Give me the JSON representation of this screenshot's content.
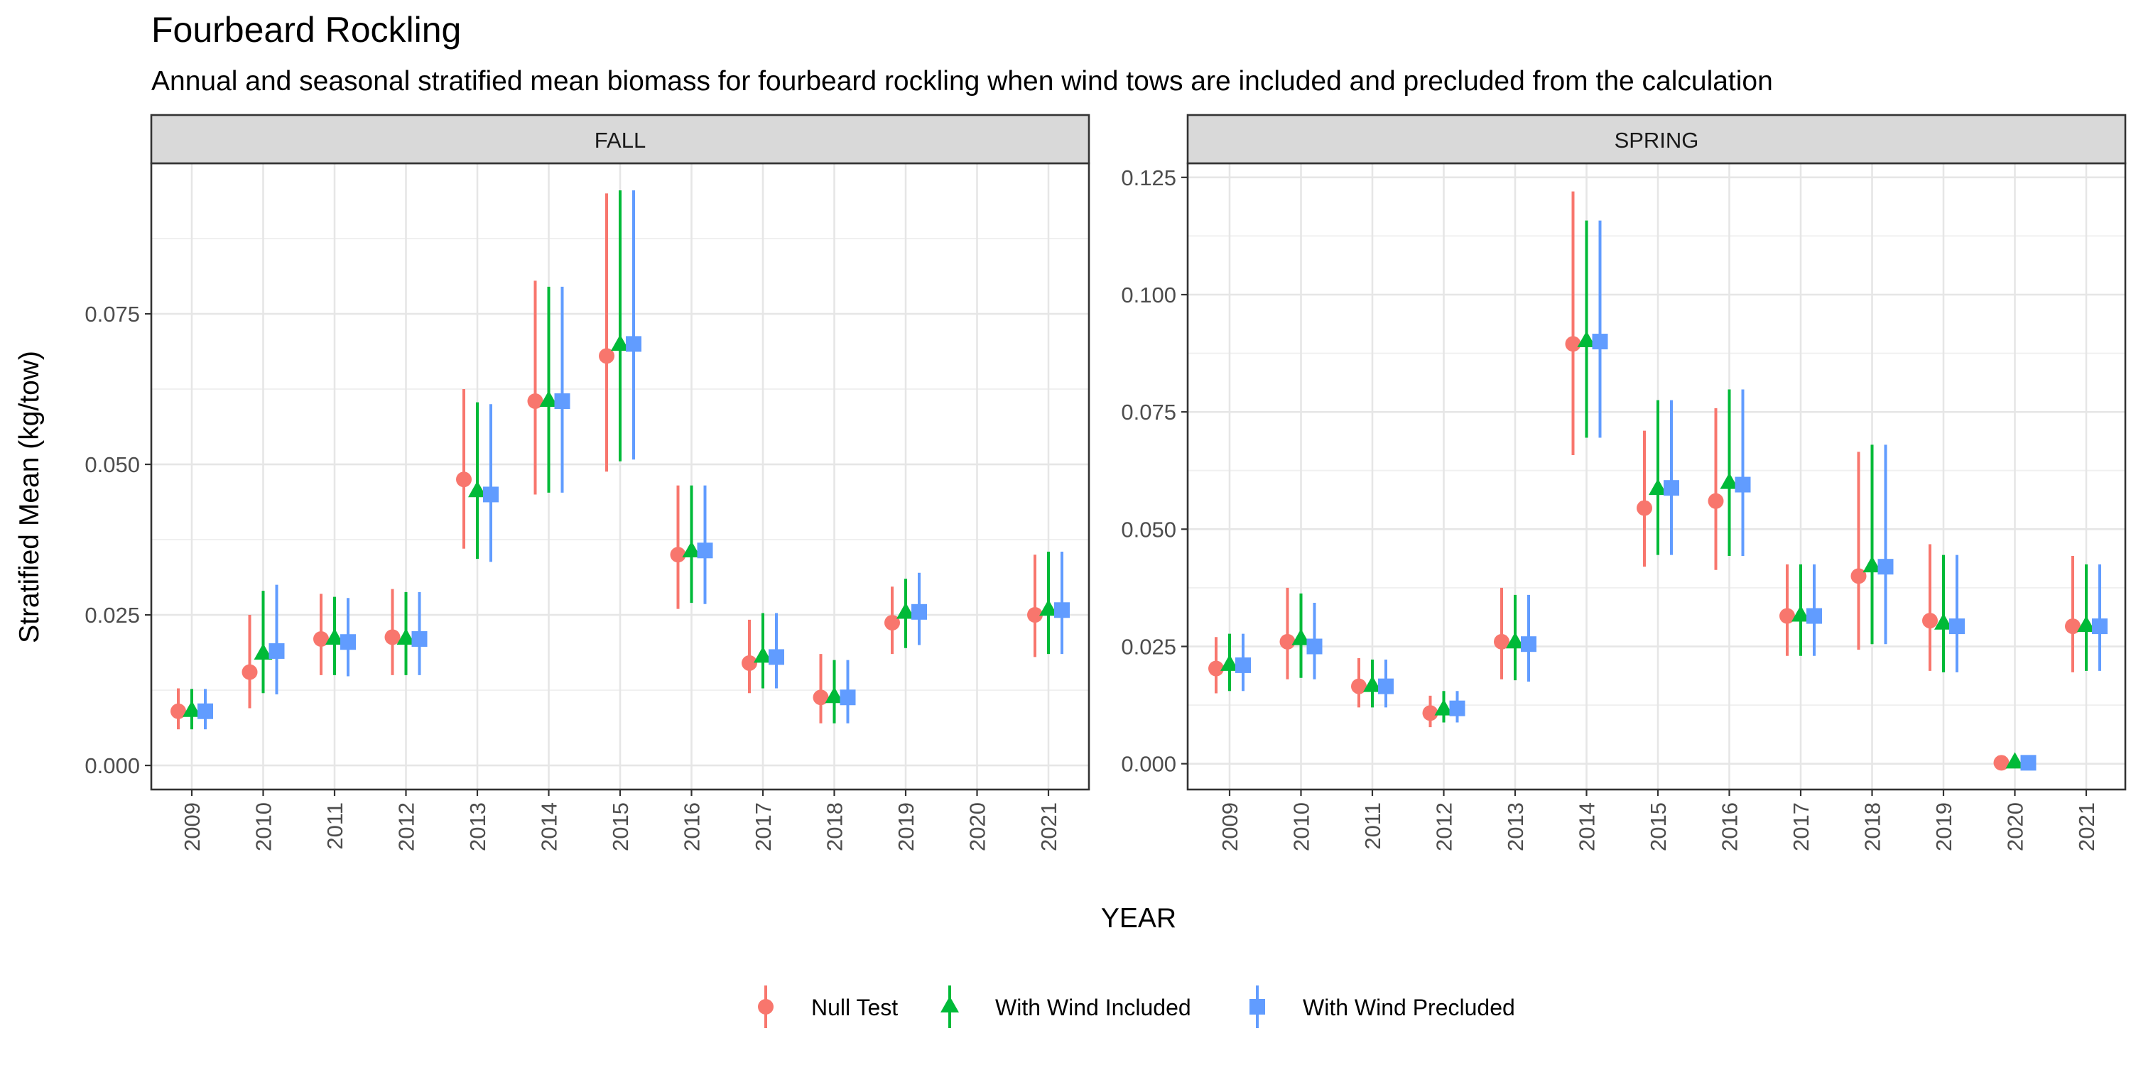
{
  "chart_data": {
    "type": "scatter",
    "title": "Fourbeard Rockling",
    "subtitle": "Annual and seasonal stratified mean biomass for fourbeard rockling when wind tows are included and precluded from the calculation",
    "xlabel": "YEAR",
    "ylabel": "Stratified Mean (kg/tow)",
    "categories": [
      "2009",
      "2010",
      "2011",
      "2012",
      "2013",
      "2014",
      "2015",
      "2016",
      "2017",
      "2018",
      "2019",
      "2020",
      "2021"
    ],
    "legend": {
      "position": "bottom",
      "entries": [
        "Null Test",
        "With Wind Included",
        "With Wind Precluded"
      ]
    },
    "colors": {
      "Null Test": "#F8766D",
      "With Wind Included": "#00BA38",
      "With Wind Precluded": "#619CFF"
    },
    "grid": true,
    "panels": [
      {
        "label": "FALL",
        "ylim": [
          -0.004,
          0.1
        ],
        "yticks": [
          0,
          0.025,
          0.05,
          0.075
        ],
        "ytick_labels": [
          "0.000",
          "0.025",
          "0.050",
          "0.075"
        ],
        "series": [
          {
            "name": "Null Test",
            "values": [
              0.009,
              0.0155,
              0.021,
              0.0213,
              0.0475,
              0.0605,
              0.068,
              0.035,
              0.017,
              0.0113,
              0.0237,
              null,
              0.025
            ],
            "lower": [
              0.006,
              0.0095,
              0.015,
              0.015,
              0.036,
              0.045,
              0.0488,
              0.026,
              0.012,
              0.007,
              0.0185,
              null,
              0.018
            ],
            "upper": [
              0.0128,
              0.025,
              0.0285,
              0.0293,
              0.0625,
              0.0805,
              0.095,
              0.0465,
              0.0242,
              0.0185,
              0.0297,
              null,
              0.035
            ]
          },
          {
            "name": "With Wind Included",
            "values": [
              0.009,
              0.0185,
              0.021,
              0.021,
              0.0455,
              0.0605,
              0.0698,
              0.0355,
              0.018,
              0.0113,
              0.0253,
              null,
              0.0258
            ],
            "lower": [
              0.006,
              0.012,
              0.015,
              0.015,
              0.0343,
              0.0453,
              0.0505,
              0.027,
              0.0128,
              0.007,
              0.0195,
              null,
              0.0185
            ],
            "upper": [
              0.0127,
              0.029,
              0.028,
              0.0288,
              0.0603,
              0.0795,
              0.0955,
              0.0465,
              0.0253,
              0.0175,
              0.031,
              null,
              0.0355
            ]
          },
          {
            "name": "With Wind Precluded",
            "values": [
              0.009,
              0.019,
              0.0205,
              0.021,
              0.045,
              0.0605,
              0.07,
              0.0357,
              0.018,
              0.0113,
              0.0255,
              null,
              0.0258
            ],
            "lower": [
              0.006,
              0.0118,
              0.0148,
              0.015,
              0.0338,
              0.0453,
              0.0508,
              0.0268,
              0.0128,
              0.007,
              0.02,
              null,
              0.0185
            ],
            "upper": [
              0.0127,
              0.03,
              0.0278,
              0.0288,
              0.06,
              0.0795,
              0.0955,
              0.0465,
              0.0253,
              0.0175,
              0.032,
              null,
              0.0355
            ]
          }
        ]
      },
      {
        "label": "SPRING",
        "ylim": [
          -0.0055,
          0.128
        ],
        "yticks": [
          0,
          0.025,
          0.05,
          0.075,
          0.1,
          0.125
        ],
        "ytick_labels": [
          "0.000",
          "0.025",
          "0.050",
          "0.075",
          "0.100",
          "0.125"
        ],
        "series": [
          {
            "name": "Null Test",
            "values": [
              0.0203,
              0.026,
              0.0165,
              0.0108,
              0.026,
              0.0895,
              0.0545,
              0.056,
              0.0315,
              0.04,
              0.0305,
              0.0002,
              0.0293
            ],
            "lower": [
              0.015,
              0.018,
              0.012,
              0.0078,
              0.018,
              0.0658,
              0.042,
              0.0413,
              0.023,
              0.0243,
              0.0198,
              0.0,
              0.0195
            ],
            "upper": [
              0.027,
              0.0375,
              0.0225,
              0.0145,
              0.0375,
              0.122,
              0.071,
              0.0758,
              0.0425,
              0.0665,
              0.0468,
              0.0004,
              0.0443
            ]
          },
          {
            "name": "With Wind Included",
            "values": [
              0.021,
              0.0265,
              0.0165,
              0.0115,
              0.0258,
              0.09,
              0.0585,
              0.0598,
              0.0315,
              0.042,
              0.0298,
              0.0002,
              0.0293
            ],
            "lower": [
              0.0155,
              0.0183,
              0.012,
              0.0088,
              0.0178,
              0.0695,
              0.0445,
              0.0443,
              0.023,
              0.0255,
              0.0195,
              0.0,
              0.0198
            ],
            "upper": [
              0.0277,
              0.0363,
              0.0222,
              0.0155,
              0.036,
              0.1158,
              0.0775,
              0.0798,
              0.0425,
              0.068,
              0.0445,
              0.0004,
              0.0425
            ]
          },
          {
            "name": "With Wind Precluded",
            "values": [
              0.021,
              0.025,
              0.0165,
              0.0118,
              0.0255,
              0.09,
              0.0588,
              0.0595,
              0.0315,
              0.042,
              0.0293,
              0.0002,
              0.0293
            ],
            "lower": [
              0.0155,
              0.018,
              0.012,
              0.0088,
              0.0175,
              0.0695,
              0.0445,
              0.0443,
              0.023,
              0.0255,
              0.0195,
              0.0,
              0.0198
            ],
            "upper": [
              0.0277,
              0.0343,
              0.0222,
              0.0155,
              0.036,
              0.1158,
              0.0775,
              0.0798,
              0.0425,
              0.068,
              0.0445,
              0.0004,
              0.0425
            ]
          }
        ]
      }
    ]
  }
}
